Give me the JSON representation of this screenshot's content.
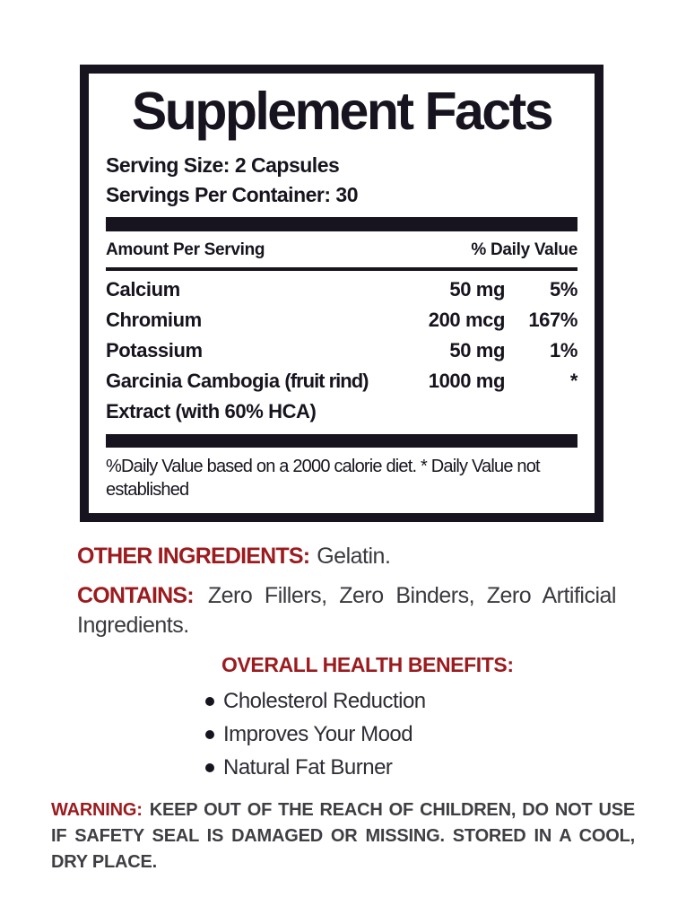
{
  "panel": {
    "title": "Supplement Facts",
    "serving_size": "Serving Size: 2 Capsules",
    "servings_per_container": "Servings Per Container: 30",
    "table": {
      "amount_header": "Amount Per Serving",
      "dv_header": "% Daily Value",
      "rows": [
        {
          "name": "Calcium",
          "name_suffix": "",
          "name_line2": "",
          "amount": "50 mg",
          "dv": "5%"
        },
        {
          "name": "Chromium",
          "name_suffix": "",
          "name_line2": "",
          "amount": "200 mcg",
          "dv": "167%"
        },
        {
          "name": "Potassium",
          "name_suffix": "",
          "name_line2": "",
          "amount": "50 mg",
          "dv": "1%"
        },
        {
          "name": "Garcinia Cambogia",
          "name_suffix": "(fruit rind)",
          "name_line2": "Extract (with 60% HCA)",
          "amount": "1000 mg",
          "dv": "*"
        }
      ]
    },
    "footnote": "%Daily Value based on a 2000 calorie diet. * Daily Value not established"
  },
  "other_ingredients": {
    "label": "OTHER INGREDIENTS:",
    "value": "Gelatin."
  },
  "contains": {
    "label": "CONTAINS:",
    "value": "Zero Fillers, Zero Binders, Zero Artificial Ingredients."
  },
  "benefits": {
    "heading": "OVERALL HEALTH BENEFITS:",
    "items": [
      "Cholesterol Reduction",
      "Improves Your Mood",
      "Natural Fat Burner"
    ]
  },
  "warning": {
    "label": "WARNING:",
    "text": "KEEP OUT OF THE REACH OF CHILDREN, DO NOT USE IF SAFETY SEAL IS DAMAGED OR MISSING. STORED IN A COOL, DRY PLACE."
  },
  "colors": {
    "panel_text": "#18141f",
    "accent_red": "#9b1b1e",
    "body_gray": "#3a393f"
  }
}
